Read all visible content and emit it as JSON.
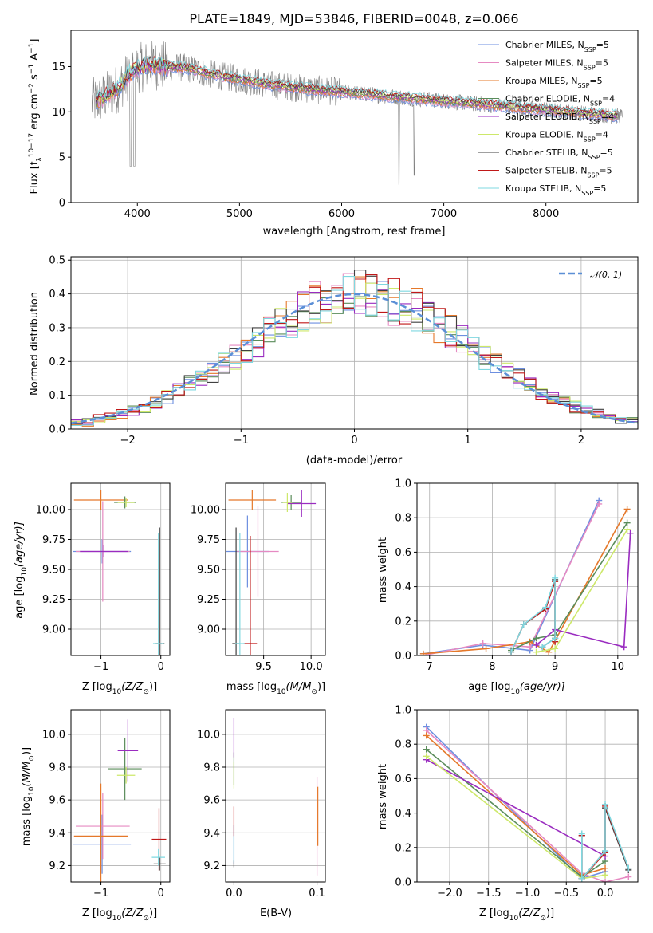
{
  "colors": {
    "Chabrier MILES": "#6d8fe0",
    "Salpeter MILES": "#e68ac2",
    "Kroupa MILES": "#e5782a",
    "Chabrier ELODIE": "#5a8c5a",
    "Salpeter ELODIE": "#9a2cc0",
    "Kroupa ELODIE": "#cde86a",
    "Chabrier STELIB": "#404040",
    "Salpeter STELIB": "#c01818",
    "Kroupa STELIB": "#7fd8e0",
    "normal": "#5b8fd6",
    "observed_spectrum": "#808080"
  },
  "chart_data": [
    {
      "id": "spectrum",
      "type": "line",
      "title": "PLATE=1849, MJD=53846, FIBERID=0048, z=0.066",
      "xlabel": "wavelength [Angstrom, rest frame]",
      "ylabel_parts": [
        "Flux [f",
        "λ",
        "10",
        "−17",
        " erg cm",
        "−2",
        " s",
        "−1",
        " A",
        "−1",
        "]"
      ],
      "xlim": [
        3350,
        8900
      ],
      "ylim": [
        0,
        19
      ],
      "xticks": [
        4000,
        5000,
        6000,
        7000,
        8000
      ],
      "yticks": [
        0,
        5,
        10,
        15
      ],
      "grid": false,
      "legend_position": "top-right",
      "continuum_x": [
        3560,
        3650,
        3800,
        3950,
        4100,
        4300,
        4500,
        4700,
        5000,
        5300,
        5600,
        6000,
        6400,
        6800,
        7200,
        7600,
        8000,
        8400,
        8750
      ],
      "continuum_y": [
        11.0,
        11.5,
        12.5,
        14.5,
        15.2,
        15.0,
        14.8,
        14.2,
        13.6,
        13.0,
        12.6,
        12.2,
        11.8,
        11.4,
        11.0,
        10.6,
        10.2,
        9.8,
        9.5
      ],
      "series": [
        {
          "name": "Chabrier MILES",
          "nssp": "5"
        },
        {
          "name": "Salpeter MILES",
          "nssp": "5"
        },
        {
          "name": "Kroupa MILES",
          "nssp": "5"
        },
        {
          "name": "Chabrier ELODIE",
          "nssp": "4"
        },
        {
          "name": "Salpeter ELODIE",
          "nssp": "4"
        },
        {
          "name": "Kroupa ELODIE",
          "nssp": "4"
        },
        {
          "name": "Chabrier STELIB",
          "nssp": "5"
        },
        {
          "name": "Salpeter STELIB",
          "nssp": "5"
        },
        {
          "name": "Kroupa STELIB",
          "nssp": "5"
        }
      ]
    },
    {
      "id": "residuals",
      "type": "bar",
      "xlabel": "(data-model)/error",
      "ylabel": "Normed distribution",
      "xlim": [
        -2.5,
        2.5
      ],
      "ylim": [
        0,
        0.51
      ],
      "xticks": [
        -2,
        -1,
        0,
        1,
        2
      ],
      "yticks": [
        0.0,
        0.1,
        0.2,
        0.3,
        0.4,
        0.5
      ],
      "grid": true,
      "legend_position": "top-right",
      "legend_label": "𝒩(0, 1)",
      "bin_width": 0.1,
      "normal_mean": 0,
      "normal_sigma": 1
    },
    {
      "id": "age-vs-Z",
      "type": "scatter",
      "xlabel_parts": [
        "Z [log",
        "10",
        "(Z/Z",
        "⊙",
        ")]"
      ],
      "ylabel_parts": [
        "age  [log",
        "10",
        "(age/yr)]"
      ],
      "xlim": [
        -1.5,
        0.15
      ],
      "ylim": [
        8.78,
        10.22
      ],
      "xticks": [
        -1,
        0
      ],
      "yticks": [
        9.0,
        9.25,
        9.5,
        9.75,
        10.0
      ],
      "grid": true,
      "errorbars": [
        {
          "series": "Chabrier MILES",
          "x": -0.98,
          "y": 9.65,
          "xerr": 0.48,
          "yerr": 0.1
        },
        {
          "series": "Salpeter MILES",
          "x": -0.97,
          "y": 9.65,
          "xerr": 0.45,
          "yerr": 0.42
        },
        {
          "series": "Kroupa MILES",
          "x": -1.0,
          "y": 10.08,
          "xerr": 0.45,
          "yerr": 0.08
        },
        {
          "series": "Chabrier ELODIE",
          "x": -0.6,
          "y": 10.06,
          "xerr": 0.18,
          "yerr": 0.05
        },
        {
          "series": "Salpeter ELODIE",
          "x": -0.95,
          "y": 9.65,
          "xerr": 0.4,
          "yerr": 0.05
        },
        {
          "series": "Kroupa ELODIE",
          "x": -0.58,
          "y": 10.06,
          "xerr": 0.14,
          "yerr": 0.04
        },
        {
          "series": "Chabrier STELIB",
          "x": -0.02,
          "y": 8.88,
          "xerr": 0.08,
          "yerr": 0.97
        },
        {
          "series": "Salpeter STELIB",
          "x": -0.03,
          "y": 8.88,
          "xerr": 0.05,
          "yerr": 0.9
        },
        {
          "series": "Kroupa STELIB",
          "x": -0.04,
          "y": 8.88,
          "xerr": 0.09,
          "yerr": 0.92
        }
      ]
    },
    {
      "id": "age-vs-mass",
      "type": "scatter",
      "xlabel_parts": [
        "mass [log",
        "10",
        "(M/M",
        "⊙",
        ")]"
      ],
      "xlim": [
        9.1,
        10.15
      ],
      "ylim": [
        8.78,
        10.22
      ],
      "xticks": [
        9.5,
        10.0
      ],
      "yticks": [
        9.0,
        9.25,
        9.5,
        9.75,
        10.0
      ],
      "grid": true,
      "errorbars": [
        {
          "series": "Chabrier MILES",
          "x": 9.33,
          "y": 9.65,
          "xerr": 0.23,
          "yerr": 0.3
        },
        {
          "series": "Salpeter MILES",
          "x": 9.44,
          "y": 9.65,
          "xerr": 0.22,
          "yerr": 0.38
        },
        {
          "series": "Kroupa MILES",
          "x": 9.38,
          "y": 10.08,
          "xerr": 0.25,
          "yerr": 0.08
        },
        {
          "series": "Chabrier ELODIE",
          "x": 9.79,
          "y": 10.06,
          "xerr": 0.1,
          "yerr": 0.06
        },
        {
          "series": "Salpeter ELODIE",
          "x": 9.9,
          "y": 10.05,
          "xerr": 0.15,
          "yerr": 0.11
        },
        {
          "series": "Kroupa ELODIE",
          "x": 9.75,
          "y": 10.06,
          "xerr": 0.05,
          "yerr": 0.08
        },
        {
          "series": "Chabrier STELIB",
          "x": 9.21,
          "y": 8.88,
          "xerr": 0.04,
          "yerr": 0.97
        },
        {
          "series": "Salpeter STELIB",
          "x": 9.36,
          "y": 8.88,
          "xerr": 0.07,
          "yerr": 0.9
        },
        {
          "series": "Kroupa STELIB",
          "x": 9.25,
          "y": 8.88,
          "xerr": 0.05,
          "yerr": 0.92
        }
      ]
    },
    {
      "id": "weight-vs-age",
      "type": "line",
      "xlabel_parts": [
        "age  [log",
        "10",
        "(age/yr)]"
      ],
      "ylabel": "mass weight",
      "xlim": [
        6.8,
        10.32
      ],
      "ylim": [
        0,
        1.0
      ],
      "xticks": [
        7,
        8,
        9,
        10
      ],
      "yticks": [
        0.0,
        0.2,
        0.4,
        0.6,
        0.8,
        1.0
      ],
      "grid": true,
      "series": [
        {
          "name": "Chabrier MILES",
          "x": [
            6.9,
            7.85,
            8.6,
            9.7
          ],
          "y": [
            0.01,
            0.06,
            0.03,
            0.9
          ]
        },
        {
          "name": "Salpeter MILES",
          "x": [
            6.9,
            7.85,
            8.6,
            9.7
          ],
          "y": [
            0.0,
            0.07,
            0.05,
            0.88
          ]
        },
        {
          "name": "Kroupa MILES",
          "x": [
            6.9,
            7.9,
            8.6,
            8.9,
            10.15
          ],
          "y": [
            0.01,
            0.04,
            0.08,
            0.02,
            0.85
          ]
        },
        {
          "name": "Chabrier ELODIE",
          "x": [
            8.3,
            8.7,
            9.0,
            10.15
          ],
          "y": [
            0.03,
            0.1,
            0.12,
            0.77
          ]
        },
        {
          "name": "Salpeter ELODIE",
          "x": [
            8.7,
            9.0,
            10.1,
            10.2
          ],
          "y": [
            0.06,
            0.15,
            0.05,
            0.71
          ]
        },
        {
          "name": "Kroupa ELODIE",
          "x": [
            8.7,
            9.0,
            10.15
          ],
          "y": [
            0.02,
            0.04,
            0.73
          ]
        },
        {
          "name": "Chabrier STELIB",
          "x": [
            8.3,
            8.5,
            8.85,
            9.0,
            9.0,
            8.8
          ],
          "y": [
            0.02,
            0.18,
            0.27,
            0.44,
            0.1,
            0.05
          ]
        },
        {
          "name": "Salpeter STELIB",
          "x": [
            8.3,
            8.5,
            8.85,
            9.0,
            9.0
          ],
          "y": [
            0.02,
            0.18,
            0.27,
            0.43,
            0.08
          ]
        },
        {
          "name": "Kroupa STELIB",
          "x": [
            8.3,
            8.5,
            8.85,
            9.0,
            9.0,
            8.8
          ],
          "y": [
            0.02,
            0.18,
            0.28,
            0.45,
            0.1,
            0.05
          ]
        }
      ]
    },
    {
      "id": "mass-vs-Z",
      "type": "scatter",
      "xlabel_parts": [
        "Z [log",
        "10",
        "(Z/Z",
        "⊙",
        ")]"
      ],
      "ylabel_parts": [
        "mass [log",
        "10",
        "(M/M",
        "⊙",
        ")]"
      ],
      "xlim": [
        -1.5,
        0.15
      ],
      "ylim": [
        9.1,
        10.15
      ],
      "xticks": [
        -1,
        0
      ],
      "yticks": [
        9.2,
        9.4,
        9.6,
        9.8,
        10.0
      ],
      "grid": true,
      "errorbars": [
        {
          "series": "Chabrier MILES",
          "x": -0.98,
          "y": 9.33,
          "xerr": 0.48,
          "yerr": 0.18
        },
        {
          "series": "Salpeter MILES",
          "x": -0.97,
          "y": 9.44,
          "xerr": 0.45,
          "yerr": 0.2
        },
        {
          "series": "Kroupa MILES",
          "x": -1.0,
          "y": 9.38,
          "xerr": 0.45,
          "yerr": 0.32
        },
        {
          "series": "Chabrier ELODIE",
          "x": -0.6,
          "y": 9.79,
          "xerr": 0.28,
          "yerr": 0.19
        },
        {
          "series": "Salpeter ELODIE",
          "x": -0.55,
          "y": 9.9,
          "xerr": 0.17,
          "yerr": 0.19
        },
        {
          "series": "Kroupa ELODIE",
          "x": -0.58,
          "y": 9.75,
          "xerr": 0.15,
          "yerr": 0.05
        },
        {
          "series": "Chabrier STELIB",
          "x": -0.02,
          "y": 9.21,
          "xerr": 0.1,
          "yerr": 0.04
        },
        {
          "series": "Salpeter STELIB",
          "x": -0.03,
          "y": 9.36,
          "xerr": 0.12,
          "yerr": 0.19
        },
        {
          "series": "Kroupa STELIB",
          "x": -0.04,
          "y": 9.25,
          "xerr": 0.11,
          "yerr": 0.05
        }
      ]
    },
    {
      "id": "mass-vs-EBV",
      "type": "scatter",
      "xlabel": "E(B-V)",
      "xlim": [
        -0.01,
        0.11
      ],
      "ylim": [
        9.1,
        10.15
      ],
      "xticks": [
        0.0,
        0.1
      ],
      "yticks": [
        9.2,
        9.4,
        9.6,
        9.8,
        10.0
      ],
      "grid": true,
      "errorbars": [
        {
          "series": "Chabrier MILES",
          "x": 0.0,
          "y": 9.33,
          "xerr": 0.0,
          "yerr": 0.12
        },
        {
          "series": "Salpeter MILES",
          "x": 0.1,
          "y": 9.44,
          "xerr": 0.0,
          "yerr": 0.3
        },
        {
          "series": "Kroupa MILES",
          "x": 0.101,
          "y": 9.5,
          "xerr": 0.0,
          "yerr": 0.18
        },
        {
          "series": "Chabrier ELODIE",
          "x": 0.0,
          "y": 9.79,
          "xerr": 0.0,
          "yerr": 0.1
        },
        {
          "series": "Salpeter ELODIE",
          "x": 0.0,
          "y": 9.98,
          "xerr": 0.0,
          "yerr": 0.12
        },
        {
          "series": "Kroupa ELODIE",
          "x": 0.0,
          "y": 9.75,
          "xerr": 0.0,
          "yerr": 0.08
        },
        {
          "series": "Chabrier STELIB",
          "x": 0.0,
          "y": 9.21,
          "xerr": 0.0,
          "yerr": 0.02
        },
        {
          "series": "Salpeter STELIB",
          "x": 0.0,
          "y": 9.47,
          "xerr": 0.0,
          "yerr": 0.09
        },
        {
          "series": "Kroupa STELIB",
          "x": 0.0,
          "y": 9.3,
          "xerr": 0.0,
          "yerr": 0.08
        }
      ]
    },
    {
      "id": "weight-vs-Z",
      "type": "line",
      "xlabel_parts": [
        "Z [log",
        "10",
        "(Z/Z",
        "⊙",
        ")]"
      ],
      "ylabel": "mass weight",
      "xlim": [
        -2.42,
        0.42
      ],
      "ylim": [
        0,
        1.0
      ],
      "xticks": [
        -2.0,
        -1.5,
        -1.0,
        -0.5,
        0.0
      ],
      "grid": true,
      "series": [
        {
          "name": "Chabrier MILES",
          "x": [
            -2.3,
            -0.3,
            0.0
          ],
          "y": [
            0.9,
            0.02,
            0.06
          ]
        },
        {
          "name": "Salpeter MILES",
          "x": [
            -2.3,
            -0.3,
            0.0,
            0.3
          ],
          "y": [
            0.88,
            0.05,
            0.0,
            0.03
          ]
        },
        {
          "name": "Kroupa MILES",
          "x": [
            -2.3,
            -0.3,
            0.0
          ],
          "y": [
            0.85,
            0.04,
            0.08
          ]
        },
        {
          "name": "Chabrier ELODIE",
          "x": [
            -2.3,
            -0.3,
            0.0
          ],
          "y": [
            0.77,
            0.03,
            0.12
          ]
        },
        {
          "name": "Salpeter ELODIE",
          "x": [
            -2.3,
            0.0
          ],
          "y": [
            0.71,
            0.15
          ]
        },
        {
          "name": "Kroupa ELODIE",
          "x": [
            -2.3,
            -0.3,
            0.0
          ],
          "y": [
            0.73,
            0.02,
            0.04
          ]
        },
        {
          "name": "Chabrier STELIB",
          "x": [
            -0.3,
            -0.3,
            0.0,
            0.0,
            0.3
          ],
          "y": [
            0.27,
            0.02,
            0.18,
            0.43,
            0.07
          ]
        },
        {
          "name": "Salpeter STELIB",
          "x": [
            -0.3,
            -0.3,
            0.0,
            0.0,
            0.3
          ],
          "y": [
            0.27,
            0.02,
            0.17,
            0.44,
            0.08
          ]
        },
        {
          "name": "Kroupa STELIB",
          "x": [
            -0.3,
            -0.3,
            0.0,
            0.0,
            0.3
          ],
          "y": [
            0.28,
            0.02,
            0.18,
            0.45,
            0.08
          ]
        }
      ]
    }
  ]
}
